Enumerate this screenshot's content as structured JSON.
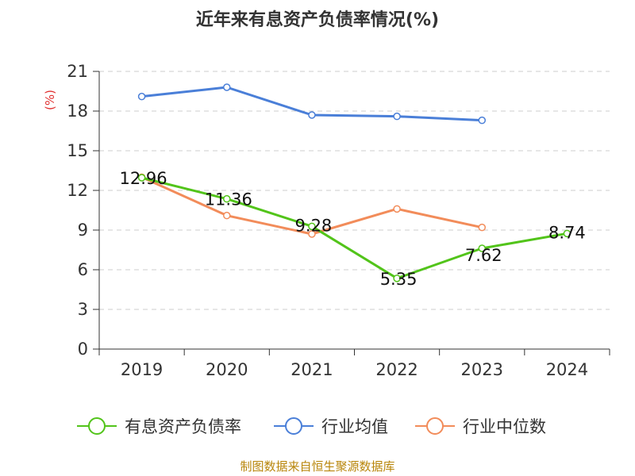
{
  "chart_data": {
    "type": "line",
    "title": "近年来有息资产负债率情况(%)",
    "ylabel": "(%)",
    "xlabel": "",
    "categories": [
      "2019",
      "2020",
      "2021",
      "2022",
      "2023",
      "2024"
    ],
    "ylim": [
      0,
      21
    ],
    "yticks": [
      0,
      3,
      6,
      9,
      12,
      15,
      18,
      21
    ],
    "grid": true,
    "legend_position": "bottom",
    "series": [
      {
        "name": "有息资产负债率",
        "color": "#52c41a",
        "values": [
          12.96,
          11.36,
          9.28,
          5.35,
          7.62,
          8.74
        ],
        "labels": [
          "12.96",
          "11.36",
          "9.28",
          "5.35",
          "7.62",
          "8.74"
        ]
      },
      {
        "name": "行业均值",
        "color": "#4a7fd8",
        "values": [
          19.1,
          19.8,
          17.7,
          17.6,
          17.3,
          null
        ]
      },
      {
        "name": "行业中位数",
        "color": "#f28c5a",
        "values": [
          13.0,
          10.1,
          8.7,
          10.6,
          9.2,
          null
        ]
      }
    ]
  },
  "source": "制图数据来自恒生聚源数据库"
}
